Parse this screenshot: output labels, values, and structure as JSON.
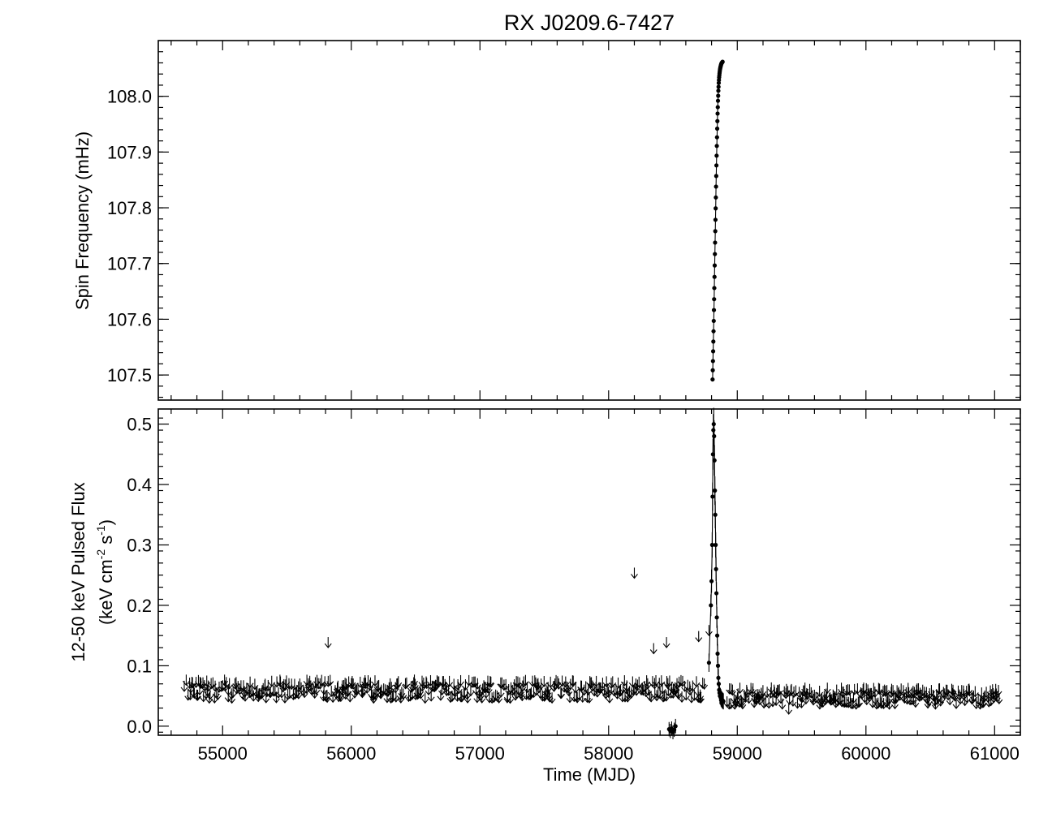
{
  "chart_data": [
    {
      "type": "line",
      "panel": "top",
      "title": "RX J0209.6-7427",
      "ylabel": "Spin Frequency (mHz)",
      "xlim": [
        54500,
        61200
      ],
      "ylim": [
        107.455,
        108.1
      ],
      "yticks": [
        "107.5",
        "107.6",
        "107.7",
        "107.8",
        "107.9",
        "108.0"
      ],
      "x_tick_labels_shown": false,
      "series": [
        {
          "marker": "filled-circle",
          "x": [
            58808,
            58811,
            58814,
            58817,
            58820,
            58823,
            58826,
            58829,
            58832,
            58835,
            58838,
            58841,
            58844,
            58847,
            58850,
            58853,
            58856,
            58859,
            58862,
            58865,
            58868,
            58871,
            58874,
            58877,
            58880,
            58883,
            58886
          ],
          "y": [
            107.492,
            107.525,
            107.56,
            107.597,
            107.636,
            107.676,
            107.717,
            107.758,
            107.799,
            107.838,
            107.876,
            107.911,
            107.942,
            107.969,
            107.992,
            108.01,
            108.024,
            108.034,
            108.041,
            108.047,
            108.051,
            108.054,
            108.057,
            108.059,
            108.06,
            108.061,
            108.062
          ]
        }
      ]
    },
    {
      "type": "scatter",
      "panel": "bottom",
      "xlabel": "Time (MJD)",
      "ylabel_line1": "12-50 keV Pulsed Flux",
      "ylabel_line2_prefix": "(keV cm",
      "ylabel_exp1": "-2",
      "ylabel_mid": " s",
      "ylabel_exp2": "-1",
      "ylabel_line2_suffix": ")",
      "xlim": [
        54500,
        61200
      ],
      "ylim": [
        -0.015,
        0.525
      ],
      "xticks": [
        "55000",
        "56000",
        "57000",
        "58000",
        "59000",
        "60000",
        "61000"
      ],
      "yticks": [
        "0.0",
        "0.1",
        "0.2",
        "0.3",
        "0.4",
        "0.5"
      ],
      "series": [
        {
          "name": "",
          "kind": "upper-limits",
          "x_start": 54700,
          "x_end": 58750,
          "x_step": 13,
          "y_band": [
            0.038,
            0.068
          ],
          "notable": [
            {
              "x": 55820,
              "y": 0.13
            },
            {
              "x": 58200,
              "y": 0.245
            },
            {
              "x": 58350,
              "y": 0.12
            },
            {
              "x": 58450,
              "y": 0.13
            },
            {
              "x": 58700,
              "y": 0.14
            },
            {
              "x": 58780,
              "y": 0.15
            },
            {
              "x": 59400,
              "y": 0.02
            }
          ]
        },
        {
          "name": "",
          "kind": "upper-limits",
          "x_start": 58920,
          "x_end": 61030,
          "x_step": 13,
          "y_band": [
            0.028,
            0.055
          ]
        },
        {
          "name": "",
          "kind": "detections",
          "x": [
            58470,
            58480,
            58490,
            58500,
            58510,
            58520,
            58780,
            58795,
            58800,
            58805,
            58808,
            58811,
            58814,
            58817,
            58820,
            58823,
            58826,
            58829,
            58832,
            58835,
            58838,
            58841,
            58844,
            58847,
            58850,
            58853,
            58856,
            58859,
            58862,
            58865,
            58868,
            58871,
            58874,
            58877,
            58880,
            58883,
            58886,
            58889,
            58892
          ],
          "y": [
            -0.005,
            -0.008,
            -0.004,
            -0.01,
            -0.006,
            0.0,
            0.105,
            0.2,
            0.24,
            0.3,
            0.38,
            0.45,
            0.49,
            0.5,
            0.48,
            0.44,
            0.39,
            0.35,
            0.3,
            0.26,
            0.22,
            0.18,
            0.15,
            0.12,
            0.1,
            0.08,
            0.07,
            0.06,
            0.055,
            0.05,
            0.05,
            0.048,
            0.046,
            0.045,
            0.044,
            0.043,
            0.042,
            0.042,
            0.041
          ]
        }
      ]
    }
  ]
}
